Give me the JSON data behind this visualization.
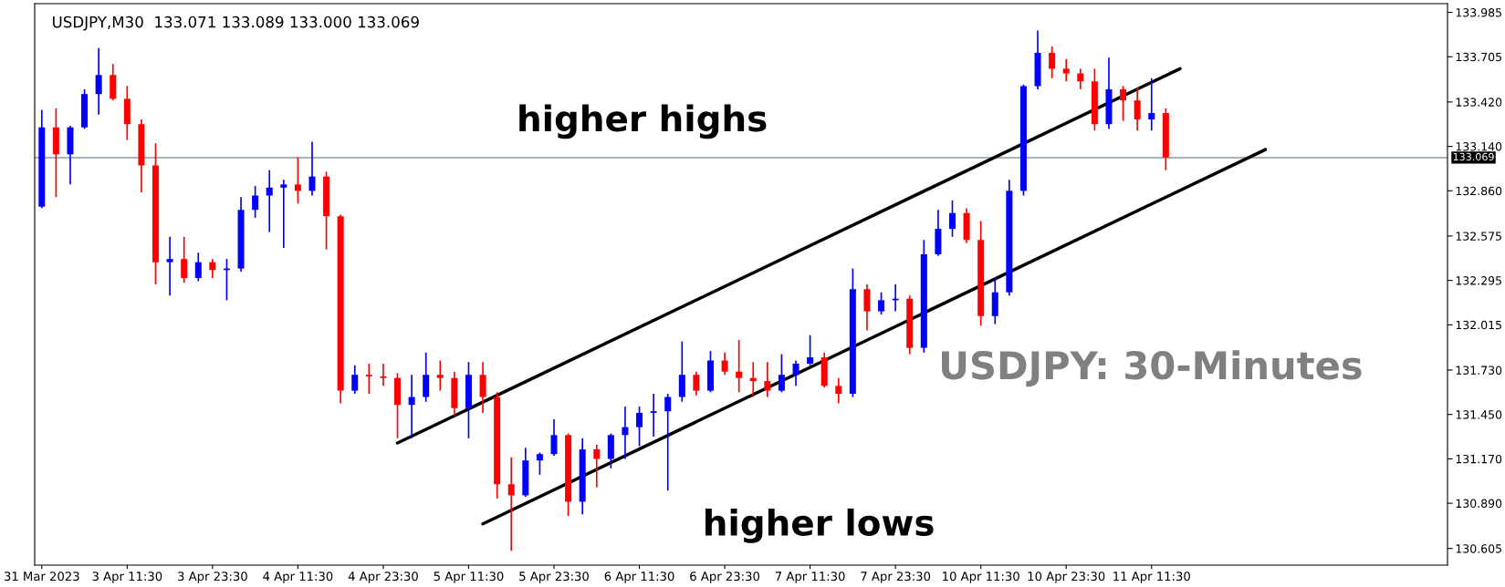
{
  "chart_data": {
    "type": "candlestick",
    "categories": [
      "31 Mar 2023",
      null,
      null,
      null,
      null,
      null,
      "3 Apr 11:30",
      null,
      null,
      null,
      null,
      null,
      "3 Apr 23:30",
      null,
      null,
      null,
      null,
      null,
      "4 Apr 11:30",
      null,
      null,
      null,
      null,
      null,
      "4 Apr 23:30",
      null,
      null,
      null,
      null,
      null,
      "5 Apr 11:30",
      null,
      null,
      null,
      null,
      null,
      "5 Apr 23:30",
      null,
      null,
      null,
      null,
      null,
      "6 Apr 11:30",
      null,
      null,
      null,
      null,
      null,
      "6 Apr 23:30",
      null,
      null,
      null,
      null,
      null,
      "7 Apr 11:30",
      null,
      null,
      null,
      null,
      null,
      "7 Apr 23:30",
      null,
      null,
      null,
      null,
      null,
      "10 Apr 11:30",
      null,
      null,
      null,
      null,
      null,
      "10 Apr 23:30",
      null,
      null,
      null,
      null,
      null,
      "11 Apr 11:30",
      null,
      null,
      null,
      null,
      null,
      null,
      null,
      null,
      null,
      null,
      null,
      null,
      null,
      null,
      null,
      null,
      null,
      null,
      null,
      null
    ],
    "ohlc": [
      [
        132.76,
        133.37,
        132.75,
        133.26
      ],
      [
        133.26,
        133.38,
        132.82,
        133.09
      ],
      [
        133.09,
        133.27,
        132.9,
        133.26
      ],
      [
        133.26,
        133.5,
        133.25,
        133.47
      ],
      [
        133.47,
        133.76,
        133.34,
        133.59
      ],
      [
        133.59,
        133.66,
        133.43,
        133.44
      ],
      [
        133.44,
        133.52,
        133.18,
        133.28
      ],
      [
        133.28,
        133.31,
        132.85,
        133.02
      ],
      [
        133.02,
        133.16,
        132.27,
        132.41
      ],
      [
        132.41,
        132.57,
        132.2,
        132.43
      ],
      [
        132.43,
        132.57,
        132.28,
        132.31
      ],
      [
        132.31,
        132.47,
        132.29,
        132.41
      ],
      [
        132.41,
        132.43,
        132.31,
        132.36
      ],
      [
        132.36,
        132.43,
        132.17,
        132.37
      ],
      [
        132.37,
        132.82,
        132.35,
        132.74
      ],
      [
        132.74,
        132.89,
        132.69,
        132.83
      ],
      [
        132.83,
        132.99,
        132.6,
        132.88
      ],
      [
        132.88,
        132.93,
        132.5,
        132.9
      ],
      [
        132.9,
        133.07,
        132.78,
        132.86
      ],
      [
        132.86,
        133.17,
        132.83,
        132.95
      ],
      [
        132.95,
        132.98,
        132.49,
        132.7
      ],
      [
        132.7,
        132.71,
        131.52,
        131.6
      ],
      [
        131.6,
        131.76,
        131.58,
        131.7
      ],
      [
        131.7,
        131.77,
        131.58,
        131.69
      ],
      [
        131.69,
        131.77,
        131.63,
        131.68
      ],
      [
        131.68,
        131.71,
        131.3,
        131.51
      ],
      [
        131.51,
        131.7,
        131.3,
        131.56
      ],
      [
        131.56,
        131.84,
        131.53,
        131.7
      ],
      [
        131.7,
        131.79,
        131.6,
        131.68
      ],
      [
        131.68,
        131.72,
        131.44,
        131.49
      ],
      [
        131.49,
        131.78,
        131.3,
        131.7
      ],
      [
        131.7,
        131.78,
        131.46,
        131.56
      ],
      [
        131.56,
        131.59,
        130.92,
        131.01
      ],
      [
        131.01,
        131.18,
        130.59,
        130.94
      ],
      [
        130.94,
        131.24,
        130.93,
        131.16
      ],
      [
        131.16,
        131.21,
        131.07,
        131.2
      ],
      [
        131.2,
        131.42,
        131.19,
        131.32
      ],
      [
        131.32,
        131.33,
        130.81,
        130.9
      ],
      [
        130.9,
        131.3,
        130.82,
        131.23
      ],
      [
        131.23,
        131.26,
        130.99,
        131.17
      ],
      [
        131.17,
        131.33,
        131.11,
        131.32
      ],
      [
        131.32,
        131.5,
        131.17,
        131.37
      ],
      [
        131.37,
        131.5,
        131.25,
        131.46
      ],
      [
        131.46,
        131.58,
        131.31,
        131.47
      ],
      [
        131.47,
        131.58,
        130.97,
        131.56
      ],
      [
        131.56,
        131.91,
        131.53,
        131.7
      ],
      [
        131.7,
        131.72,
        131.57,
        131.6
      ],
      [
        131.6,
        131.85,
        131.59,
        131.79
      ],
      [
        131.79,
        131.84,
        131.7,
        131.72
      ],
      [
        131.72,
        131.92,
        131.59,
        131.68
      ],
      [
        131.68,
        131.78,
        131.56,
        131.66
      ],
      [
        131.66,
        131.78,
        131.56,
        131.6
      ],
      [
        131.6,
        131.83,
        131.59,
        131.7
      ],
      [
        131.7,
        131.79,
        131.63,
        131.77
      ],
      [
        131.77,
        131.95,
        131.76,
        131.81
      ],
      [
        131.81,
        131.84,
        131.62,
        131.63
      ],
      [
        131.63,
        131.68,
        131.52,
        131.58
      ],
      [
        131.58,
        132.37,
        131.56,
        132.24
      ],
      [
        132.24,
        132.27,
        131.98,
        132.1
      ],
      [
        132.1,
        132.22,
        132.08,
        132.17
      ],
      [
        132.17,
        132.27,
        132.1,
        132.18
      ],
      [
        132.18,
        132.2,
        131.83,
        131.87
      ],
      [
        131.87,
        132.55,
        131.84,
        132.46
      ],
      [
        132.46,
        132.74,
        132.45,
        132.62
      ],
      [
        132.62,
        132.8,
        132.57,
        132.72
      ],
      [
        132.72,
        132.75,
        132.53,
        132.55
      ],
      [
        132.55,
        132.67,
        132.01,
        132.07
      ],
      [
        132.07,
        132.31,
        132.02,
        132.22
      ],
      [
        132.22,
        132.93,
        132.2,
        132.86
      ],
      [
        132.86,
        133.53,
        132.83,
        133.52
      ],
      [
        133.52,
        133.87,
        133.5,
        133.73
      ],
      [
        133.73,
        133.77,
        133.57,
        133.63
      ],
      [
        133.63,
        133.69,
        133.55,
        133.6
      ],
      [
        133.6,
        133.63,
        133.5,
        133.55
      ],
      [
        133.55,
        133.63,
        133.24,
        133.28
      ],
      [
        133.28,
        133.7,
        133.25,
        133.5
      ],
      [
        133.5,
        133.52,
        133.3,
        133.43
      ],
      [
        133.43,
        133.51,
        133.24,
        133.31
      ],
      [
        133.31,
        133.57,
        133.24,
        133.35
      ],
      [
        133.35,
        133.38,
        132.99,
        133.07
      ],
      null,
      null,
      null,
      null,
      null,
      null,
      null,
      null,
      null,
      null,
      null,
      null,
      null,
      null,
      null,
      null,
      null,
      null,
      null
    ],
    "colors": [
      "#0000ff",
      "#ff0000",
      "#0000ff",
      "#0000ff",
      "#0000ff",
      "#ff0000",
      "#ff0000",
      "#ff0000",
      "#ff0000",
      "#0000ff",
      "#ff0000",
      "#0000ff",
      "#ff0000",
      "#0000ff",
      "#0000ff",
      "#0000ff",
      "#0000ff",
      "#0000ff",
      "#ff0000",
      "#0000ff",
      "#ff0000",
      "#ff0000",
      "#0000ff",
      "#ff0000",
      "#ff0000",
      "#ff0000",
      "#0000ff",
      "#0000ff",
      "#ff0000",
      "#ff0000",
      "#0000ff",
      "#ff0000",
      "#ff0000",
      "#ff0000",
      "#0000ff",
      "#0000ff",
      "#0000ff",
      "#ff0000",
      "#0000ff",
      "#ff0000",
      "#0000ff",
      "#0000ff",
      "#0000ff",
      "#0000ff",
      "#0000ff",
      "#0000ff",
      "#ff0000",
      "#0000ff",
      "#ff0000",
      "#ff0000",
      "#ff0000",
      "#ff0000",
      "#0000ff",
      "#0000ff",
      "#0000ff",
      "#ff0000",
      "#ff0000",
      "#0000ff",
      "#ff0000",
      "#0000ff",
      "#0000ff",
      "#ff0000",
      "#0000ff",
      "#0000ff",
      "#0000ff",
      "#ff0000",
      "#ff0000",
      "#0000ff",
      "#0000ff",
      "#0000ff",
      "#0000ff",
      "#ff0000",
      "#ff0000",
      "#ff0000",
      "#ff0000",
      "#0000ff",
      "#ff0000",
      "#ff0000",
      "#0000ff",
      "#ff0000",
      null,
      null,
      null,
      null,
      null,
      null,
      null,
      null,
      null,
      null,
      null,
      null,
      null,
      null,
      null,
      null,
      null,
      null,
      null
    ],
    "series": [
      {
        "type": "line",
        "color": "#000000",
        "values": [
          null,
          null,
          null,
          null,
          null,
          null,
          null,
          null,
          null,
          null,
          null,
          null,
          null,
          null,
          null,
          null,
          null,
          null,
          null,
          null,
          null,
          null,
          null,
          null,
          null,
          131.27,
          null,
          null,
          null,
          null,
          null,
          null,
          null,
          null,
          null,
          null,
          null,
          null,
          null,
          null,
          null,
          null,
          null,
          null,
          null,
          null,
          null,
          null,
          null,
          null,
          null,
          null,
          null,
          null,
          null,
          null,
          null,
          null,
          null,
          null,
          null,
          null,
          null,
          null,
          null,
          null,
          null,
          null,
          null,
          null,
          null,
          null,
          null,
          null,
          null,
          null,
          null,
          null,
          null,
          null,
          133.63,
          null,
          null,
          null,
          null,
          null,
          null,
          null,
          null,
          null,
          null,
          null,
          null,
          null,
          null,
          null,
          null,
          null,
          null
        ]
      },
      {
        "type": "line",
        "color": "#000000",
        "values": [
          null,
          null,
          null,
          null,
          null,
          null,
          null,
          null,
          null,
          null,
          null,
          null,
          null,
          null,
          null,
          null,
          null,
          null,
          null,
          null,
          null,
          null,
          null,
          null,
          null,
          null,
          null,
          null,
          null,
          null,
          null,
          130.76,
          null,
          null,
          null,
          null,
          null,
          null,
          null,
          null,
          null,
          null,
          null,
          null,
          null,
          null,
          null,
          null,
          null,
          null,
          null,
          null,
          null,
          null,
          null,
          null,
          null,
          null,
          null,
          null,
          null,
          null,
          null,
          null,
          null,
          null,
          null,
          null,
          null,
          null,
          null,
          null,
          null,
          null,
          null,
          null,
          null,
          null,
          null,
          null,
          null,
          null,
          null,
          null,
          null,
          null,
          133.12,
          null,
          null,
          null,
          null,
          null,
          null,
          null,
          null,
          null,
          null,
          null,
          null
        ]
      }
    ],
    "ylim": [
      130.5,
      134.04
    ],
    "yticks": [
      {
        "value": 133.985,
        "label": "133.985"
      },
      {
        "value": 133.705,
        "label": "133.705"
      },
      {
        "value": 133.42,
        "label": "133.420"
      },
      {
        "value": 133.14,
        "label": "133.140"
      },
      {
        "value": 132.86,
        "label": "132.860"
      },
      {
        "value": 132.575,
        "label": "132.575"
      },
      {
        "value": 132.295,
        "label": "132.295"
      },
      {
        "value": 132.015,
        "label": "132.015"
      },
      {
        "value": 131.73,
        "label": "131.730"
      },
      {
        "value": 131.45,
        "label": "131.450"
      },
      {
        "value": 131.17,
        "label": "131.170"
      },
      {
        "value": 130.89,
        "label": "130.890"
      },
      {
        "value": 130.605,
        "label": "130.605"
      }
    ],
    "ref_lines": [
      {
        "axis": "y",
        "value": 133.069,
        "label": "133.069",
        "color": "#8c9aa6"
      }
    ],
    "annotations": [
      "USDJPY,M30  133.071 133.089 133.000 133.069",
      "higher highs",
      "higher lows",
      "USDJPY: 30-Minutes"
    ],
    "grid": false,
    "legend": false
  }
}
